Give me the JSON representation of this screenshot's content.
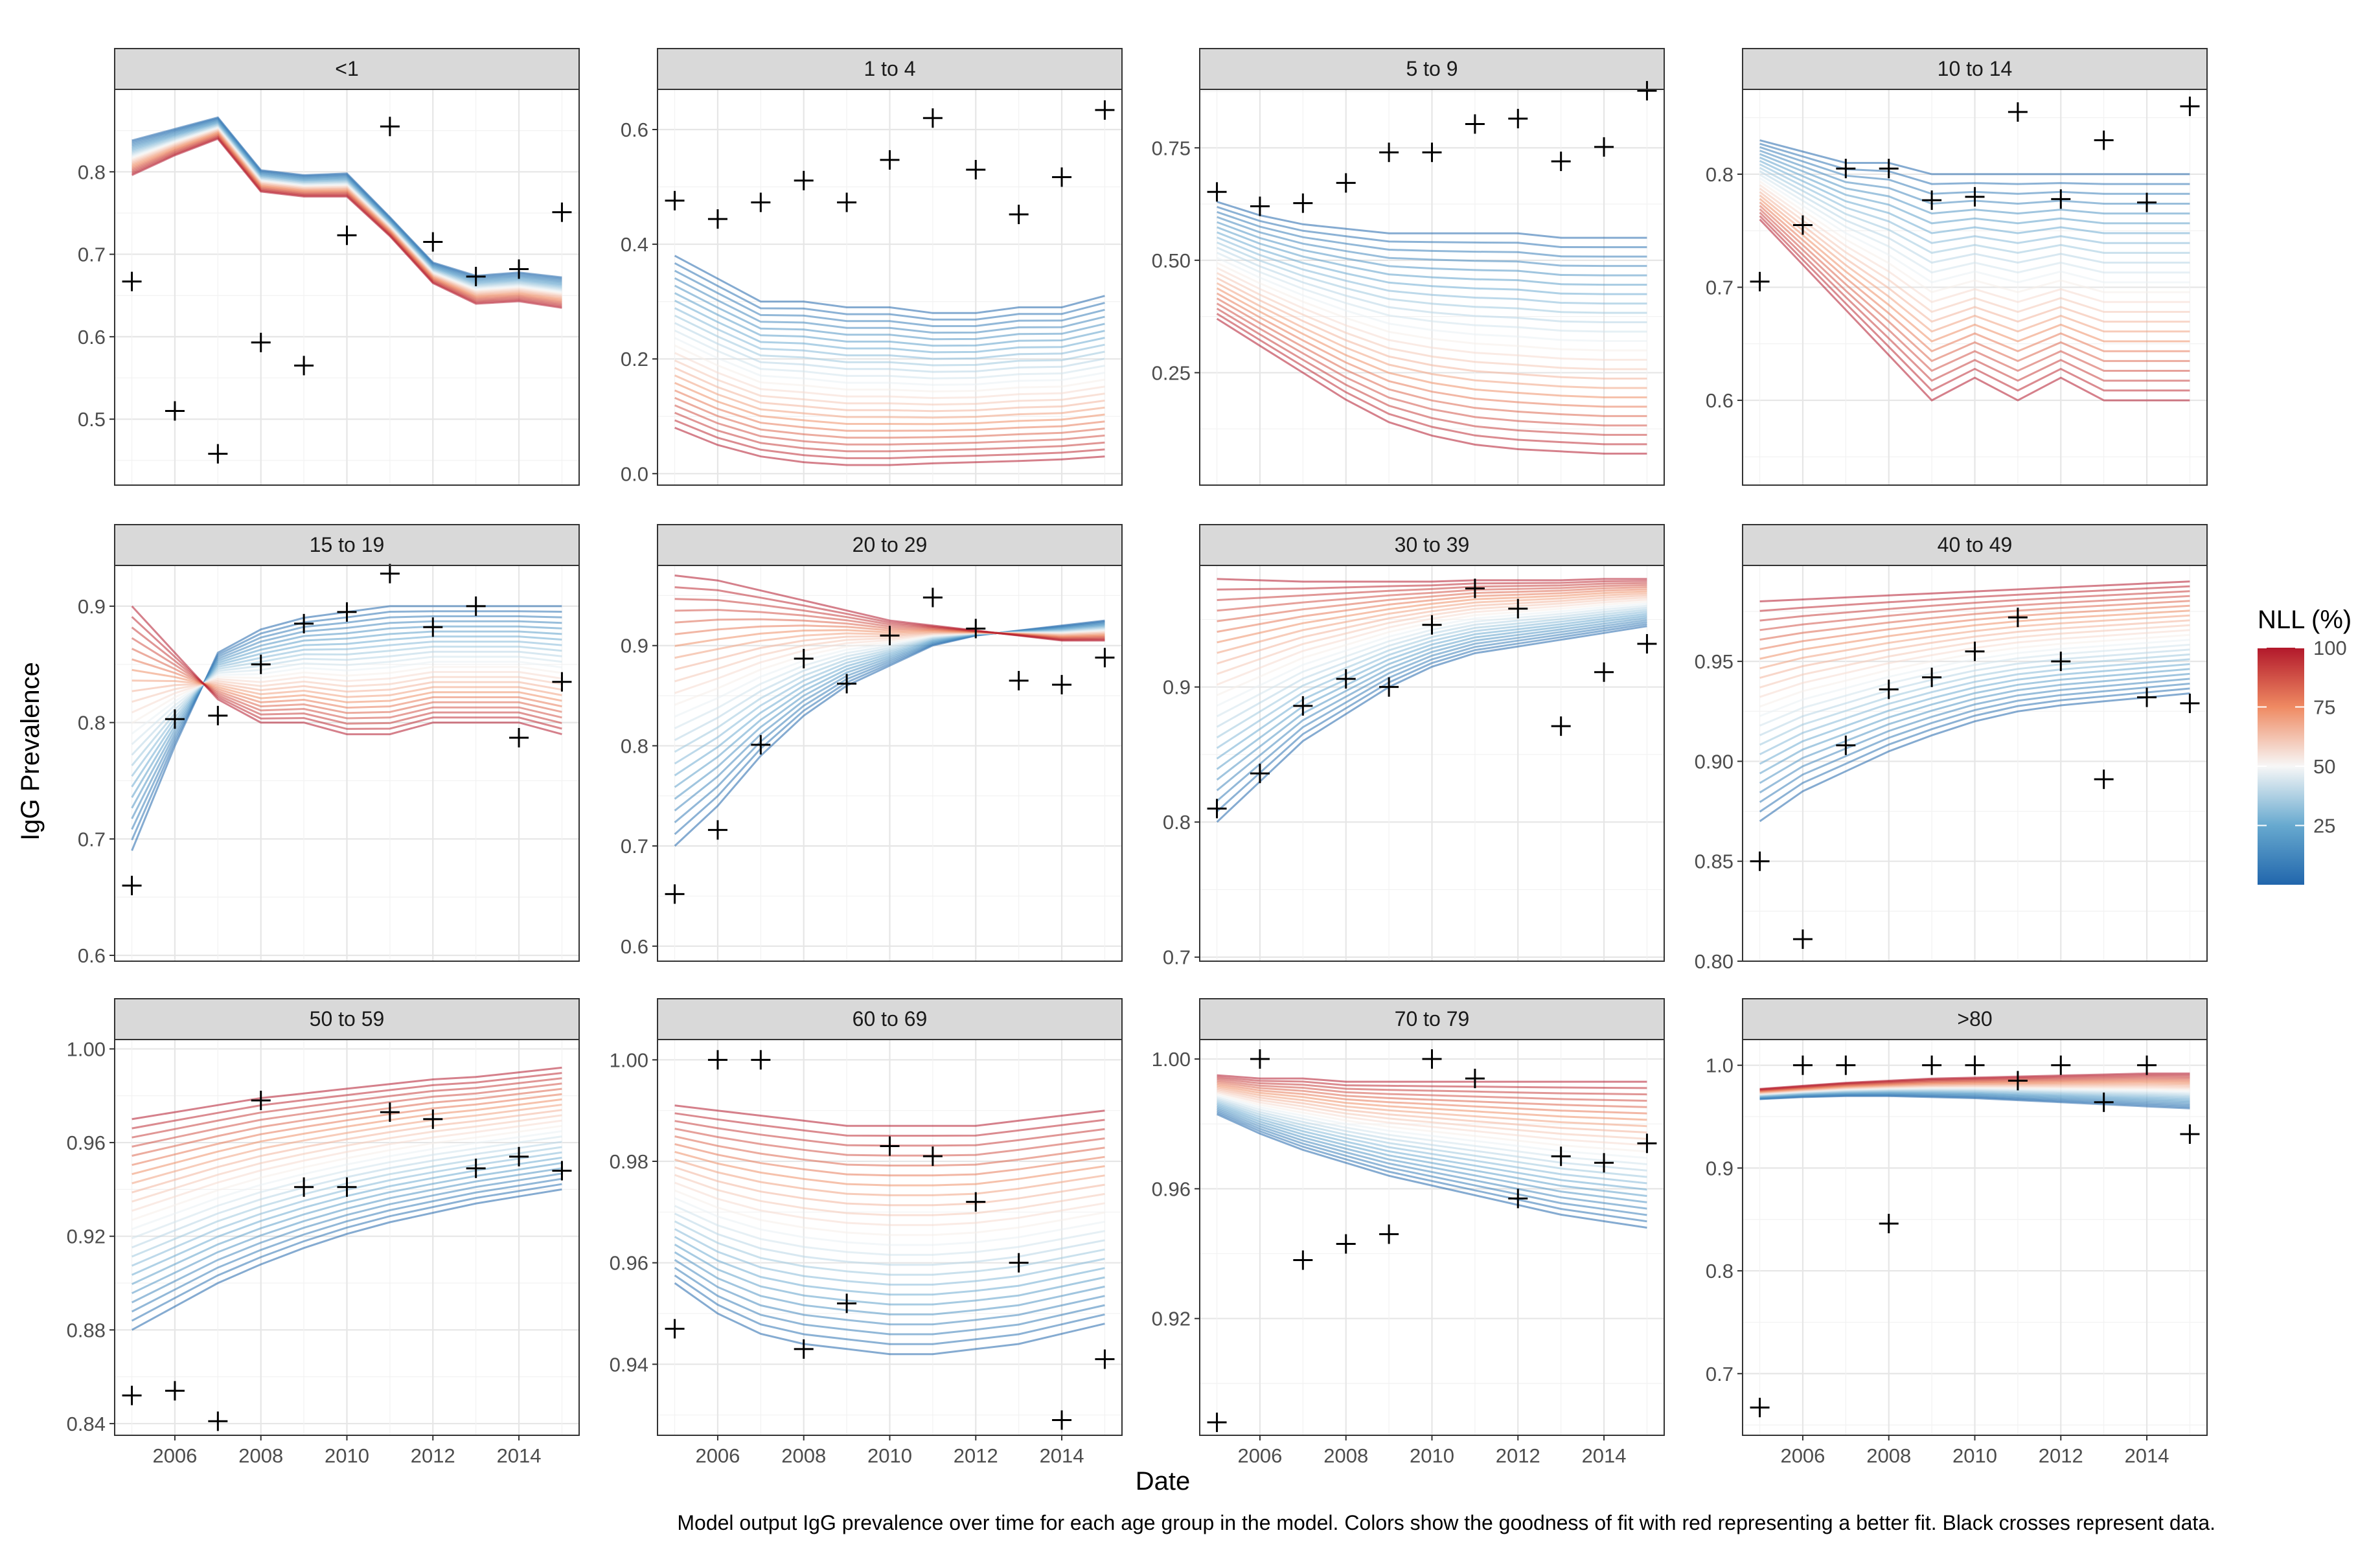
{
  "figure": {
    "ylabel": "IgG Prevalence",
    "xlabel": "Date",
    "caption": "Model output IgG prevalence over time for each age group in the model. Colors show the goodness of fit with red representing a better fit. Black crosses represent data.",
    "legend": {
      "title": "NLL (%)",
      "ticks": [
        100,
        75,
        50,
        25
      ],
      "low_color": "#2166ac",
      "mid_color": "#f7f7f7",
      "high_color": "#b2182b",
      "placement": "right"
    },
    "x_ticks": [
      2006,
      2008,
      2010,
      2012,
      2014
    ],
    "xlim": [
      2004.6,
      2015.4
    ]
  },
  "chart_data": [
    {
      "type": "line",
      "title": "<1",
      "xlabel": "Date",
      "ylabel": "IgG Prevalence",
      "ylim": [
        0.42,
        0.9
      ],
      "yticks": [
        0.5,
        0.6,
        0.7,
        0.8
      ],
      "model": {
        "x": [
          2005,
          2006,
          2007,
          2008,
          2009,
          2010,
          2011,
          2012,
          2013,
          2014,
          2015
        ],
        "best": [
          0.796,
          0.82,
          0.84,
          0.776,
          0.77,
          0.77,
          0.722,
          0.665,
          0.64,
          0.643,
          0.635
        ],
        "worst": [
          0.838,
          0.852,
          0.866,
          0.802,
          0.796,
          0.798,
          0.745,
          0.69,
          0.674,
          0.678,
          0.672
        ]
      },
      "observed": {
        "x": [
          2005,
          2006,
          2007,
          2008,
          2009,
          2010,
          2011,
          2012,
          2013,
          2014,
          2015
        ],
        "y": [
          0.667,
          0.51,
          0.458,
          0.593,
          0.565,
          0.723,
          0.855,
          0.715,
          0.673,
          0.682,
          0.751
        ]
      }
    },
    {
      "type": "line",
      "title": "1 to 4",
      "xlabel": "Date",
      "ylabel": "IgG Prevalence",
      "ylim": [
        -0.02,
        0.67
      ],
      "yticks": [
        0.0,
        0.2,
        0.4,
        0.6
      ],
      "model": {
        "x": [
          2005,
          2006,
          2007,
          2008,
          2009,
          2010,
          2011,
          2012,
          2013,
          2014,
          2015
        ],
        "best": [
          0.08,
          0.05,
          0.03,
          0.02,
          0.015,
          0.015,
          0.018,
          0.02,
          0.022,
          0.025,
          0.03
        ],
        "worst": [
          0.38,
          0.34,
          0.3,
          0.3,
          0.29,
          0.29,
          0.28,
          0.28,
          0.29,
          0.29,
          0.31
        ]
      },
      "observed": {
        "x": [
          2005,
          2006,
          2007,
          2008,
          2009,
          2010,
          2011,
          2012,
          2013,
          2014,
          2015
        ],
        "y": [
          0.476,
          0.444,
          0.473,
          0.511,
          0.473,
          0.547,
          0.62,
          0.53,
          0.452,
          0.517,
          0.634
        ]
      }
    },
    {
      "type": "line",
      "title": "5 to 9",
      "xlabel": "Date",
      "ylabel": "IgG Prevalence",
      "ylim": [
        0.0,
        0.88
      ],
      "yticks": [
        0.25,
        0.5,
        0.75
      ],
      "model": {
        "x": [
          2005,
          2006,
          2007,
          2008,
          2009,
          2010,
          2011,
          2012,
          2013,
          2014,
          2015
        ],
        "best": [
          0.37,
          0.31,
          0.25,
          0.19,
          0.14,
          0.11,
          0.09,
          0.08,
          0.075,
          0.07,
          0.07
        ],
        "worst": [
          0.63,
          0.6,
          0.58,
          0.57,
          0.56,
          0.56,
          0.56,
          0.56,
          0.55,
          0.55,
          0.55
        ]
      },
      "observed": {
        "x": [
          2005,
          2006,
          2007,
          2008,
          2009,
          2010,
          2011,
          2012,
          2013,
          2014,
          2015
        ],
        "y": [
          0.652,
          0.62,
          0.627,
          0.672,
          0.74,
          0.74,
          0.803,
          0.815,
          0.72,
          0.752,
          0.877
        ]
      }
    },
    {
      "type": "line",
      "title": "10 to 14",
      "xlabel": "Date",
      "ylabel": "IgG Prevalence",
      "ylim": [
        0.525,
        0.875
      ],
      "yticks": [
        0.6,
        0.7,
        0.8
      ],
      "model": {
        "x": [
          2005,
          2006,
          2007,
          2008,
          2009,
          2010,
          2011,
          2012,
          2013,
          2014,
          2015
        ],
        "best": [
          0.76,
          0.72,
          0.68,
          0.64,
          0.6,
          0.62,
          0.6,
          0.62,
          0.6,
          0.6,
          0.6
        ],
        "worst": [
          0.83,
          0.82,
          0.81,
          0.81,
          0.8,
          0.8,
          0.8,
          0.8,
          0.8,
          0.8,
          0.8
        ]
      },
      "observed": {
        "x": [
          2005,
          2006,
          2007,
          2008,
          2009,
          2010,
          2011,
          2012,
          2013,
          2014,
          2015
        ],
        "y": [
          0.705,
          0.755,
          0.805,
          0.805,
          0.777,
          0.78,
          0.855,
          0.778,
          0.83,
          0.775,
          0.86
        ]
      }
    },
    {
      "type": "line",
      "title": "15 to 19",
      "xlabel": "Date",
      "ylabel": "IgG Prevalence",
      "ylim": [
        0.595,
        0.935
      ],
      "yticks": [
        0.6,
        0.7,
        0.8,
        0.9
      ],
      "model": {
        "x": [
          2005,
          2006,
          2007,
          2008,
          2009,
          2010,
          2011,
          2012,
          2013,
          2014,
          2015
        ],
        "best": [
          0.9,
          0.86,
          0.82,
          0.8,
          0.8,
          0.79,
          0.79,
          0.8,
          0.8,
          0.8,
          0.79
        ],
        "worst": [
          0.69,
          0.78,
          0.86,
          0.88,
          0.89,
          0.895,
          0.9,
          0.9,
          0.9,
          0.9,
          0.9
        ]
      },
      "observed": {
        "x": [
          2005,
          2006,
          2007,
          2008,
          2009,
          2010,
          2011,
          2012,
          2013,
          2014,
          2015
        ],
        "y": [
          0.66,
          0.803,
          0.806,
          0.85,
          0.885,
          0.895,
          0.928,
          0.882,
          0.9,
          0.787,
          0.835
        ]
      }
    },
    {
      "type": "line",
      "title": "20 to 29",
      "xlabel": "Date",
      "ylabel": "IgG Prevalence",
      "ylim": [
        0.585,
        0.98
      ],
      "yticks": [
        0.6,
        0.7,
        0.8,
        0.9
      ],
      "model": {
        "x": [
          2005,
          2006,
          2007,
          2008,
          2009,
          2010,
          2011,
          2012,
          2013,
          2014,
          2015
        ],
        "best": [
          0.97,
          0.965,
          0.955,
          0.945,
          0.935,
          0.925,
          0.92,
          0.915,
          0.91,
          0.905,
          0.905
        ],
        "worst": [
          0.7,
          0.74,
          0.79,
          0.83,
          0.86,
          0.88,
          0.9,
          0.91,
          0.915,
          0.92,
          0.925
        ]
      },
      "observed": {
        "x": [
          2005,
          2006,
          2007,
          2008,
          2009,
          2010,
          2011,
          2012,
          2013,
          2014,
          2015
        ],
        "y": [
          0.652,
          0.716,
          0.801,
          0.887,
          0.862,
          0.91,
          0.948,
          0.917,
          0.865,
          0.861,
          0.888
        ]
      }
    },
    {
      "type": "line",
      "title": "30 to 39",
      "xlabel": "Date",
      "ylabel": "IgG Prevalence",
      "ylim": [
        0.697,
        0.99
      ],
      "yticks": [
        0.7,
        0.8,
        0.9
      ],
      "model": {
        "x": [
          2005,
          2006,
          2007,
          2008,
          2009,
          2010,
          2011,
          2012,
          2013,
          2014,
          2015
        ],
        "best": [
          0.98,
          0.979,
          0.978,
          0.978,
          0.978,
          0.978,
          0.979,
          0.979,
          0.979,
          0.98,
          0.98
        ],
        "worst": [
          0.8,
          0.83,
          0.86,
          0.88,
          0.9,
          0.915,
          0.925,
          0.93,
          0.935,
          0.94,
          0.945
        ]
      },
      "observed": {
        "x": [
          2005,
          2006,
          2007,
          2008,
          2009,
          2010,
          2011,
          2012,
          2013,
          2014,
          2015
        ],
        "y": [
          0.81,
          0.836,
          0.886,
          0.906,
          0.9,
          0.946,
          0.973,
          0.958,
          0.871,
          0.911,
          0.932
        ]
      }
    },
    {
      "type": "line",
      "title": "40 to 49",
      "xlabel": "Date",
      "ylabel": "IgG Prevalence",
      "ylim": [
        0.8,
        0.998
      ],
      "yticks": [
        0.8,
        0.85,
        0.9,
        0.95
      ],
      "model": {
        "x": [
          2005,
          2006,
          2007,
          2008,
          2009,
          2010,
          2011,
          2012,
          2013,
          2014,
          2015
        ],
        "best": [
          0.98,
          0.981,
          0.982,
          0.983,
          0.984,
          0.985,
          0.986,
          0.987,
          0.988,
          0.989,
          0.99
        ],
        "worst": [
          0.87,
          0.885,
          0.895,
          0.905,
          0.913,
          0.92,
          0.925,
          0.928,
          0.93,
          0.932,
          0.934
        ]
      },
      "observed": {
        "x": [
          2005,
          2006,
          2007,
          2008,
          2009,
          2010,
          2011,
          2012,
          2013,
          2014,
          2015
        ],
        "y": [
          0.85,
          0.811,
          0.908,
          0.936,
          0.942,
          0.955,
          0.972,
          0.95,
          0.891,
          0.932,
          0.929
        ]
      }
    },
    {
      "type": "line",
      "title": "50 to 59",
      "xlabel": "Date",
      "ylabel": "IgG Prevalence",
      "ylim": [
        0.835,
        1.004
      ],
      "yticks": [
        0.84,
        0.88,
        0.92,
        0.96,
        1.0
      ],
      "model": {
        "x": [
          2005,
          2006,
          2007,
          2008,
          2009,
          2010,
          2011,
          2012,
          2013,
          2014,
          2015
        ],
        "best": [
          0.97,
          0.973,
          0.976,
          0.979,
          0.981,
          0.983,
          0.985,
          0.987,
          0.988,
          0.99,
          0.992
        ],
        "worst": [
          0.88,
          0.89,
          0.9,
          0.908,
          0.915,
          0.921,
          0.926,
          0.93,
          0.934,
          0.937,
          0.94
        ]
      },
      "observed": {
        "x": [
          2005,
          2006,
          2007,
          2008,
          2009,
          2010,
          2011,
          2012,
          2013,
          2014,
          2015
        ],
        "y": [
          0.852,
          0.854,
          0.841,
          0.978,
          0.941,
          0.941,
          0.973,
          0.97,
          0.949,
          0.954,
          0.948
        ]
      }
    },
    {
      "type": "line",
      "title": "60 to 69",
      "xlabel": "Date",
      "ylabel": "IgG Prevalence",
      "ylim": [
        0.926,
        1.004
      ],
      "yticks": [
        0.94,
        0.96,
        0.98,
        1.0
      ],
      "model": {
        "x": [
          2005,
          2006,
          2007,
          2008,
          2009,
          2010,
          2011,
          2012,
          2013,
          2014,
          2015
        ],
        "best": [
          0.991,
          0.99,
          0.989,
          0.988,
          0.987,
          0.987,
          0.987,
          0.987,
          0.988,
          0.989,
          0.99
        ],
        "worst": [
          0.956,
          0.95,
          0.946,
          0.944,
          0.943,
          0.942,
          0.942,
          0.943,
          0.944,
          0.946,
          0.948
        ]
      },
      "observed": {
        "x": [
          2005,
          2006,
          2007,
          2008,
          2009,
          2010,
          2011,
          2012,
          2013,
          2014,
          2015
        ],
        "y": [
          0.947,
          1.0,
          1.0,
          0.943,
          0.952,
          0.983,
          0.981,
          0.972,
          0.96,
          0.929,
          0.941
        ]
      }
    },
    {
      "type": "line",
      "title": "70 to 79",
      "xlabel": "Date",
      "ylabel": "IgG Prevalence",
      "ylim": [
        0.884,
        1.006
      ],
      "yticks": [
        0.92,
        0.96,
        1.0
      ],
      "model": {
        "x": [
          2005,
          2006,
          2007,
          2008,
          2009,
          2010,
          2011,
          2012,
          2013,
          2014,
          2015
        ],
        "best": [
          0.995,
          0.994,
          0.994,
          0.993,
          0.993,
          0.993,
          0.993,
          0.993,
          0.993,
          0.993,
          0.993
        ],
        "worst": [
          0.983,
          0.977,
          0.972,
          0.968,
          0.964,
          0.961,
          0.958,
          0.955,
          0.952,
          0.95,
          0.948
        ]
      },
      "observed": {
        "x": [
          2005,
          2006,
          2007,
          2008,
          2009,
          2010,
          2011,
          2012,
          2013,
          2014,
          2015
        ],
        "y": [
          0.888,
          1.0,
          0.938,
          0.943,
          0.946,
          1.0,
          0.994,
          0.957,
          0.97,
          0.968,
          0.974
        ]
      }
    },
    {
      "type": "line",
      "title": ">80",
      "xlabel": "Date",
      "ylabel": "IgG Prevalence",
      "ylim": [
        0.64,
        1.025
      ],
      "yticks": [
        0.7,
        0.8,
        0.9,
        1.0
      ],
      "model": {
        "x": [
          2005,
          2006,
          2007,
          2008,
          2009,
          2010,
          2011,
          2012,
          2013,
          2014,
          2015
        ],
        "best": [
          0.977,
          0.98,
          0.983,
          0.985,
          0.987,
          0.988,
          0.989,
          0.99,
          0.991,
          0.992,
          0.992
        ],
        "worst": [
          0.967,
          0.969,
          0.97,
          0.97,
          0.969,
          0.968,
          0.966,
          0.964,
          0.962,
          0.96,
          0.958
        ]
      },
      "observed": {
        "x": [
          2005,
          2006,
          2007,
          2008,
          2009,
          2010,
          2011,
          2012,
          2013,
          2014,
          2015
        ],
        "y": [
          0.667,
          1.0,
          1.0,
          0.846,
          1.0,
          1.0,
          0.985,
          1.0,
          0.964,
          1.0,
          0.933
        ]
      }
    }
  ]
}
